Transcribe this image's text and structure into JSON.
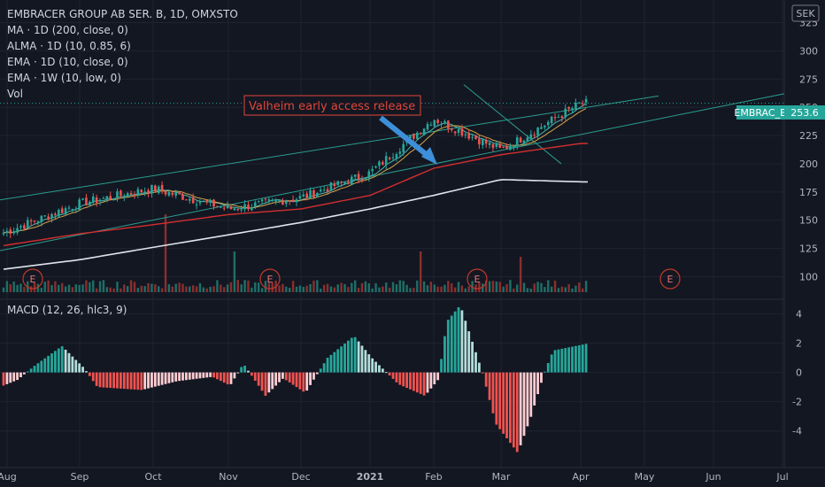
{
  "chart_data": [
    {
      "type": "candlestick",
      "panel": "price",
      "currency": "SEK",
      "title": "EMBRACER GROUP AB SER. B, 1D, OMXSTO",
      "indicators": [
        "MA · 1D (200, close, 0)",
        "ALMA · 1D (10, 0.85, 6)",
        "EMA · 1D (10, close, 0)",
        "EMA · 1W (10, low, 0)",
        "Vol"
      ],
      "price_label": {
        "symbol": "EMBRAC_B",
        "value": "253.6",
        "price": 253.6
      },
      "annotation": "Valheim early access release",
      "ylim": [
        80,
        345
      ],
      "y_ticks": [
        100,
        125,
        150,
        175,
        200,
        225,
        250,
        275,
        300,
        325
      ],
      "x_labels": [
        "Aug",
        "Sep",
        "Oct",
        "Nov",
        "Dec",
        "2021",
        "Feb",
        "Mar",
        "Apr",
        "May",
        "Jun",
        "Jul"
      ],
      "earnings_marker": "E",
      "series": [
        {
          "name": "MA · 1D (200, close, 0)",
          "points": [
            [
              "Aug",
              107
            ],
            [
              "Sep",
              115
            ],
            [
              "Oct",
              126
            ],
            [
              "Nov",
              137
            ],
            [
              "Dec",
              148
            ],
            [
              "2021",
              160
            ],
            [
              "Feb",
              172
            ],
            [
              "Mar",
              186
            ],
            [
              "Apr",
              184
            ]
          ]
        },
        {
          "name": "EMA · 1W (10, low, 0)",
          "points": [
            [
              "Aug",
              128
            ],
            [
              "Sep",
              138
            ],
            [
              "Oct",
              146
            ],
            [
              "Nov",
              155
            ],
            [
              "Dec",
              160
            ],
            [
              "2021",
              172
            ],
            [
              "Feb",
              196
            ],
            [
              "Mar",
              208
            ],
            [
              "Apr",
              218
            ]
          ]
        }
      ],
      "close_points": [
        [
          "Aug",
          140
        ],
        [
          "Sep",
          165
        ],
        [
          "Oct",
          178
        ],
        [
          "Nov",
          160
        ],
        [
          "Dec",
          170
        ],
        [
          "2021",
          192
        ],
        [
          "Feb",
          240
        ],
        [
          "Mar",
          212
        ],
        [
          "Apr",
          253.6
        ]
      ]
    },
    {
      "type": "bar",
      "panel": "macd",
      "title": "MACD (12, 26, hlc3, 9)",
      "ylim": [
        -6.5,
        5
      ],
      "y_ticks": [
        -4,
        -2,
        0,
        2,
        4
      ]
    }
  ]
}
